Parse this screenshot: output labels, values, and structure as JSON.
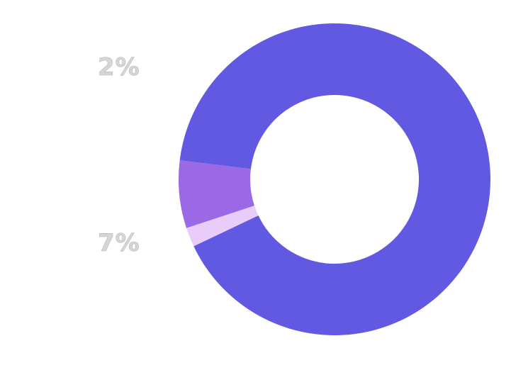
{
  "chart_data": {
    "type": "pie",
    "style": "donut",
    "slices": [
      {
        "value": 91,
        "color": "#6259E2"
      },
      {
        "value": 2,
        "color": "#E9CCF9"
      },
      {
        "value": 7,
        "color": "#9B68E6"
      }
    ],
    "labels": [
      {
        "text": "2%",
        "slice": 1
      },
      {
        "text": "7%",
        "slice": 2
      }
    ]
  }
}
